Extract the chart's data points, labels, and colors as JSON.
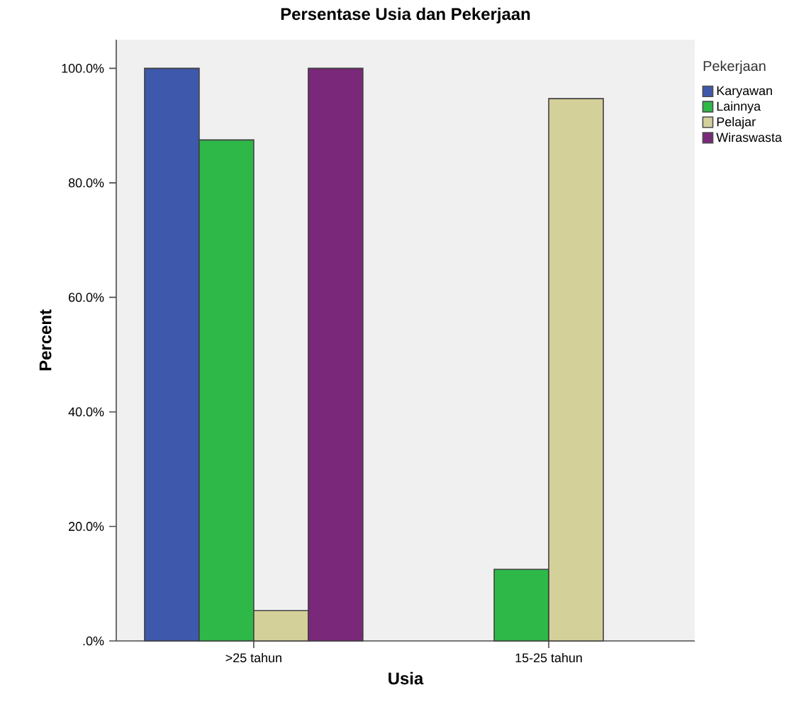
{
  "chart_data": {
    "type": "bar",
    "title": "Persentase Usia dan Pekerjaan",
    "xlabel": "Usia",
    "ylabel": "Percent",
    "legend_title": "Pekerjaan",
    "legend": "right",
    "categories": [
      ">25 tahun",
      "15-25 tahun"
    ],
    "series": [
      {
        "name": "Karyawan",
        "color": "#3e58ac",
        "values": [
          100,
          null
        ]
      },
      {
        "name": "Lainnya",
        "color": "#2eb848",
        "values": [
          87.5,
          12.5
        ]
      },
      {
        "name": "Pelajar",
        "color": "#d4d09a",
        "values": [
          5.3,
          94.7
        ]
      },
      {
        "name": "Wiraswasta",
        "color": "#7a287a",
        "values": [
          100,
          null
        ]
      }
    ],
    "ylim": [
      0,
      105
    ],
    "yticks": [
      {
        "value": 0,
        "label": ".0%"
      },
      {
        "value": 20,
        "label": "20.0%"
      },
      {
        "value": 40,
        "label": "40.0%"
      },
      {
        "value": 60,
        "label": "60.0%"
      },
      {
        "value": 80,
        "label": "80.0%"
      },
      {
        "value": 100,
        "label": "100.0%"
      }
    ]
  }
}
